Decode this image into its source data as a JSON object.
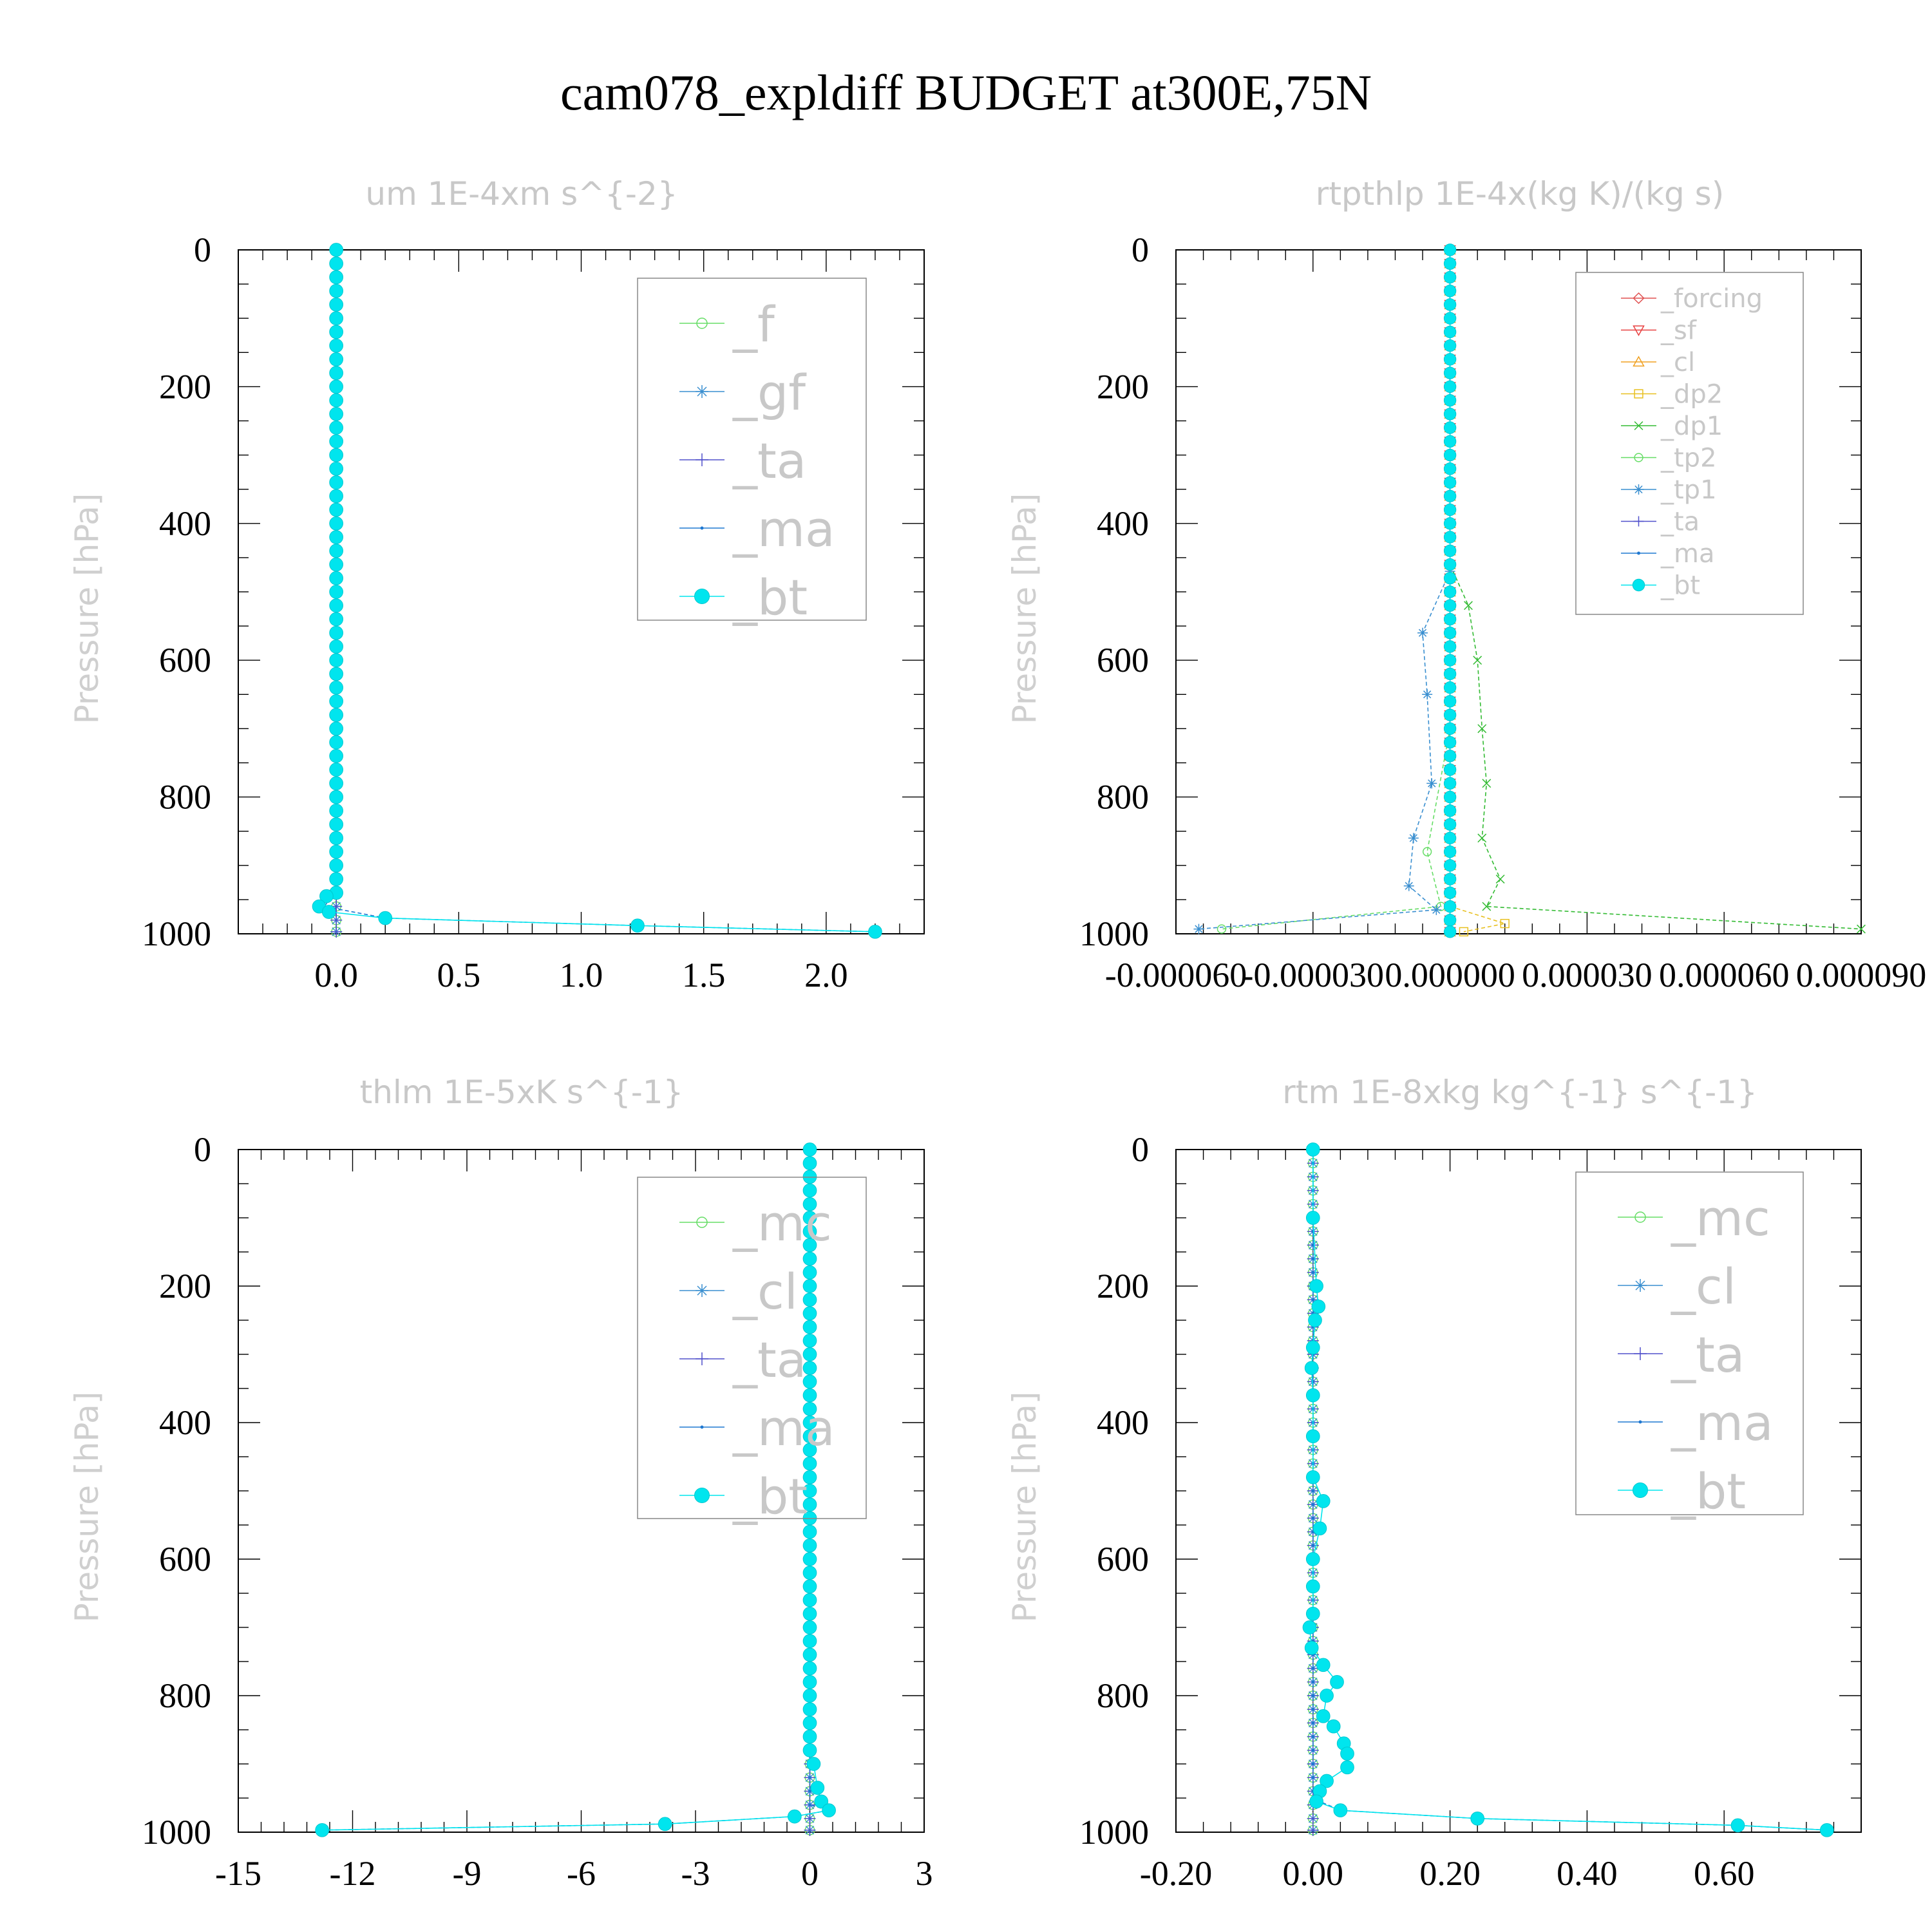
{
  "title": "cam078_expldiff  BUDGET at300E,75N",
  "chart_data": [
    {
      "type": "line",
      "title": "um   1E-4xm s^{-2}",
      "ylabel": "Pressure [hPa]",
      "xlim": [
        -0.4,
        2.4
      ],
      "ylim": [
        1000,
        0
      ],
      "xticks": [
        0.0,
        0.5,
        1.0,
        1.5,
        2.0
      ],
      "xtick_labels": [
        "0.0",
        "0.5",
        "1.0",
        "1.5",
        "2.0"
      ],
      "yticks": [
        0,
        200,
        400,
        600,
        800,
        1000
      ],
      "ytick_labels": [
        "0",
        "200",
        "400",
        "600",
        "800",
        "1000"
      ],
      "legend": {
        "position": "top-right",
        "size": "large"
      },
      "series": [
        {
          "name": "_f",
          "color": "#66dd66",
          "marker": "circle-open",
          "profile": "zero"
        },
        {
          "name": "_gf",
          "color": "#3a8fd0",
          "marker": "star",
          "profile": "zero"
        },
        {
          "name": "_ta",
          "color": "#5050cc",
          "marker": "plus",
          "profile": "zero"
        },
        {
          "name": "_ma",
          "color": "#1f78d1",
          "marker": "dot",
          "points": [
            [
              -0.05,
              960
            ],
            [
              0.2,
              977
            ],
            [
              1.23,
              988
            ],
            [
              2.2,
              997
            ]
          ]
        },
        {
          "name": "_bt",
          "color": "#00e5ee",
          "marker": "circle-filled",
          "points": [
            [
              -0.04,
              945
            ],
            [
              -0.07,
              960
            ],
            [
              -0.03,
              968
            ],
            [
              0.2,
              977
            ],
            [
              1.23,
              988
            ],
            [
              2.2,
              997
            ]
          ]
        }
      ]
    },
    {
      "type": "line",
      "title": "rtpthlp   1E-4x(kg K)/(kg s)",
      "ylabel": "Pressure [hPa]",
      "xlim": [
        -6e-05,
        9e-05
      ],
      "ylim": [
        1000,
        0
      ],
      "xticks": [
        -6e-05,
        -3e-05,
        0.0,
        3e-05,
        6e-05,
        9e-05
      ],
      "xtick_labels": [
        "-0.000060",
        "-0.000030",
        "0.000000",
        "0.000030",
        "0.000060",
        "0.000090"
      ],
      "yticks": [
        0,
        200,
        400,
        600,
        800,
        1000
      ],
      "ytick_labels": [
        "0",
        "200",
        "400",
        "600",
        "800",
        "1000"
      ],
      "legend": {
        "position": "top-right",
        "size": "small"
      },
      "series": [
        {
          "name": "_forcing",
          "color": "#e05050",
          "marker": "diamond",
          "profile": "zero"
        },
        {
          "name": "_sf",
          "color": "#e84040",
          "marker": "triangle-down",
          "profile": "zero"
        },
        {
          "name": "_cl",
          "color": "#f0a020",
          "marker": "triangle",
          "profile": "zero"
        },
        {
          "name": "_dp2",
          "color": "#e8c020",
          "marker": "square",
          "profile": "zero",
          "points": [
            [
              0.0,
              960
            ],
            [
              1.2e-05,
              985
            ],
            [
              3e-06,
              997
            ]
          ]
        },
        {
          "name": "_dp1",
          "color": "#33bb33",
          "marker": "x",
          "points": [
            [
              0.0,
              460
            ],
            [
              4e-06,
              520
            ],
            [
              6e-06,
              600
            ],
            [
              7e-06,
              700
            ],
            [
              8e-06,
              780
            ],
            [
              7e-06,
              860
            ],
            [
              1.1e-05,
              920
            ],
            [
              8e-06,
              960
            ],
            [
              9e-05,
              993
            ]
          ]
        },
        {
          "name": "_tp2",
          "color": "#66dd66",
          "marker": "circle-open",
          "points": [
            [
              0.0,
              700
            ],
            [
              -5e-06,
              880
            ],
            [
              -2e-06,
              960
            ],
            [
              -5e-05,
              993
            ]
          ]
        },
        {
          "name": "_tp1",
          "color": "#3a8fd0",
          "marker": "star",
          "points": [
            [
              0.0,
              470
            ],
            [
              -6e-06,
              560
            ],
            [
              -5e-06,
              650
            ],
            [
              -4e-06,
              780
            ],
            [
              -8e-06,
              860
            ],
            [
              -9e-06,
              930
            ],
            [
              -3e-06,
              965
            ],
            [
              -5.5e-05,
              993
            ]
          ]
        },
        {
          "name": "_ta",
          "color": "#5050cc",
          "marker": "plus",
          "profile": "zero"
        },
        {
          "name": "_ma",
          "color": "#1f78d1",
          "marker": "dot",
          "profile": "zero"
        },
        {
          "name": "_bt",
          "color": "#00e5ee",
          "marker": "circle-filled",
          "profile": "zero"
        }
      ]
    },
    {
      "type": "line",
      "title": "thlm   1E-5xK s^{-1}",
      "ylabel": "Pressure [hPa]",
      "xlim": [
        -15,
        3
      ],
      "ylim": [
        1000,
        0
      ],
      "xticks": [
        -15,
        -12,
        -9,
        -6,
        -3,
        0,
        3
      ],
      "xtick_labels": [
        "-15",
        "-12",
        "-9",
        "-6",
        "-3",
        "0",
        "3"
      ],
      "yticks": [
        0,
        200,
        400,
        600,
        800,
        1000
      ],
      "ytick_labels": [
        "0",
        "200",
        "400",
        "600",
        "800",
        "1000"
      ],
      "legend": {
        "position": "top-right",
        "size": "large"
      },
      "series": [
        {
          "name": "_mc",
          "color": "#66dd66",
          "marker": "circle-open",
          "profile": "zero"
        },
        {
          "name": "_cl",
          "color": "#3a8fd0",
          "marker": "star",
          "profile": "zero"
        },
        {
          "name": "_ta",
          "color": "#5050cc",
          "marker": "plus",
          "profile": "zero"
        },
        {
          "name": "_ma",
          "color": "#1f78d1",
          "marker": "dot",
          "points": [
            [
              0.5,
              968
            ],
            [
              -0.4,
              977
            ],
            [
              -3.8,
              988
            ],
            [
              -12.8,
              997
            ]
          ]
        },
        {
          "name": "_bt",
          "color": "#00e5ee",
          "marker": "circle-filled",
          "points": [
            [
              0.1,
              900
            ],
            [
              0.2,
              935
            ],
            [
              0.3,
              955
            ],
            [
              0.5,
              968
            ],
            [
              -0.4,
              977
            ],
            [
              -3.8,
              988
            ],
            [
              -12.8,
              997
            ]
          ]
        }
      ]
    },
    {
      "type": "line",
      "title": "rtm   1E-8xkg kg^{-1} s^{-1}",
      "ylabel": "Pressure [hPa]",
      "xlim": [
        -0.2,
        0.8
      ],
      "ylim": [
        1000,
        0
      ],
      "xticks": [
        -0.2,
        0.0,
        0.2,
        0.4,
        0.6
      ],
      "xtick_labels": [
        "-0.20",
        "0.00",
        "0.20",
        "0.40",
        "0.60"
      ],
      "yticks": [
        0,
        200,
        400,
        600,
        800,
        1000
      ],
      "ytick_labels": [
        "0",
        "200",
        "400",
        "600",
        "800",
        "1000"
      ],
      "legend": {
        "position": "top-right",
        "size": "large"
      },
      "series": [
        {
          "name": "_mc",
          "color": "#66dd66",
          "marker": "circle-open",
          "profile": "zero"
        },
        {
          "name": "_cl",
          "color": "#3a8fd0",
          "marker": "star",
          "profile": "zero"
        },
        {
          "name": "_ta",
          "color": "#5050cc",
          "marker": "plus",
          "profile": "zero"
        },
        {
          "name": "_ma",
          "color": "#1f78d1",
          "marker": "dot",
          "points": [
            [
              0.01,
              955
            ],
            [
              0.04,
              968
            ],
            [
              0.24,
              980
            ],
            [
              0.62,
              990
            ],
            [
              0.75,
              997
            ]
          ]
        },
        {
          "name": "_bt",
          "color": "#00e5ee",
          "marker": "circle-filled",
          "points": [
            [
              0.0,
              0
            ],
            [
              0.0,
              100
            ],
            [
              0.005,
              200
            ],
            [
              0.008,
              230
            ],
            [
              0.003,
              250
            ],
            [
              0.0,
              290
            ],
            [
              -0.002,
              320
            ],
            [
              0.0,
              360
            ],
            [
              0.0,
              420
            ],
            [
              0.0,
              480
            ],
            [
              0.015,
              515
            ],
            [
              0.01,
              555
            ],
            [
              0.0,
              600
            ],
            [
              0.0,
              640
            ],
            [
              0.0,
              680
            ],
            [
              -0.005,
              700
            ],
            [
              -0.002,
              730
            ],
            [
              0.015,
              755
            ],
            [
              0.035,
              780
            ],
            [
              0.02,
              800
            ],
            [
              0.015,
              830
            ],
            [
              0.03,
              845
            ],
            [
              0.045,
              870
            ],
            [
              0.05,
              885
            ],
            [
              0.05,
              905
            ],
            [
              0.02,
              925
            ],
            [
              0.01,
              940
            ],
            [
              0.005,
              955
            ],
            [
              0.04,
              968
            ],
            [
              0.24,
              980
            ],
            [
              0.62,
              990
            ],
            [
              0.75,
              997
            ]
          ]
        }
      ]
    }
  ]
}
